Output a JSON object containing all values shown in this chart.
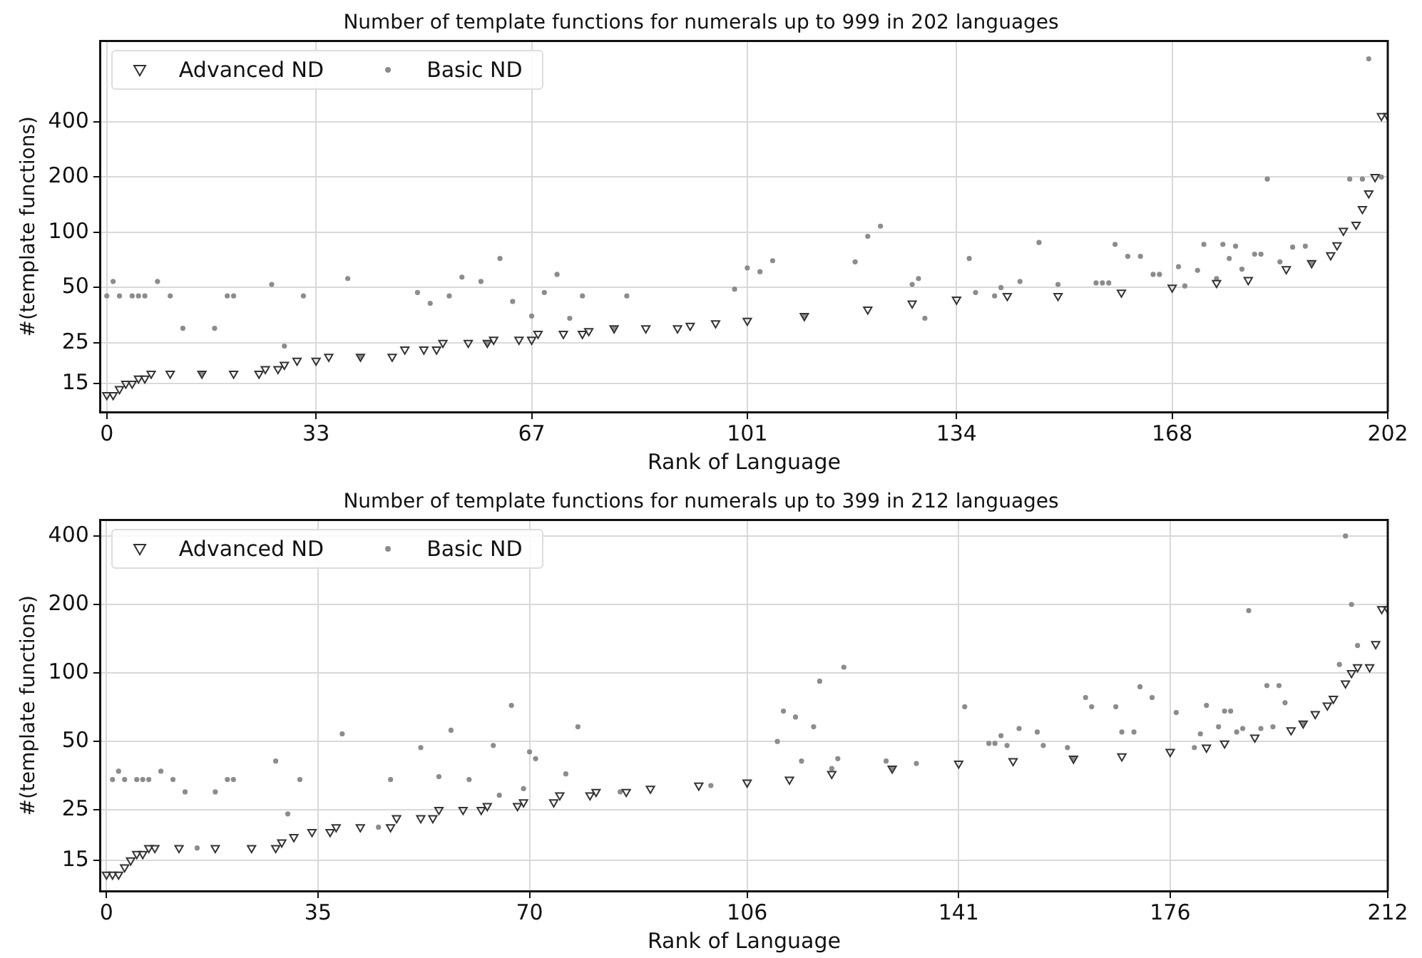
{
  "chart_data": [
    {
      "type": "scatter",
      "title": "Number of template functions for numerals up to 999 in 202 languages",
      "xlabel": "Rank of Language",
      "ylabel": "#(template functions)",
      "xlim": [
        -1,
        202
      ],
      "xticks": [
        0,
        33,
        67,
        101,
        134,
        168,
        202
      ],
      "ylim": [
        10.5,
        1100
      ],
      "yticks": [
        15,
        25,
        50,
        100,
        200,
        400
      ],
      "log": "y",
      "grid": true,
      "legend": "top left",
      "series": [
        {
          "name": "Advanced ND",
          "color": "#333333",
          "marker": "triangle",
          "x": [
            0,
            1,
            2,
            3,
            4,
            5,
            6,
            7,
            10,
            15,
            20,
            24,
            25,
            27,
            28,
            30,
            33,
            35,
            40,
            45,
            47,
            50,
            52,
            53,
            57,
            60,
            61,
            65,
            67,
            68,
            72,
            75,
            76,
            80,
            85,
            90,
            92,
            96,
            101,
            110,
            120,
            127,
            134,
            142,
            150,
            160,
            168,
            175,
            180,
            186,
            190,
            193,
            194,
            195,
            197,
            198,
            199,
            200,
            201,
            202
          ],
          "values": [
            13,
            13,
            14,
            15,
            15,
            16,
            16,
            17,
            17,
            17,
            17,
            17,
            18,
            18,
            19,
            20,
            20,
            21,
            21,
            21,
            23,
            23,
            23,
            25,
            25,
            25,
            26,
            26,
            26,
            28,
            28,
            28,
            29,
            30,
            30,
            30,
            31,
            32,
            33,
            35,
            38,
            41,
            43,
            45,
            45,
            47,
            50,
            53,
            55,
            63,
            68,
            75,
            85,
            102,
            110,
            134,
            163,
            200,
            430,
            430
          ]
        },
        {
          "name": "Basic ND",
          "color": "#8c8c8c",
          "marker": "circle",
          "x": [
            0,
            1,
            2,
            4,
            5,
            6,
            8,
            10,
            12,
            15,
            17,
            19,
            20,
            26,
            28,
            31,
            38,
            40,
            49,
            51,
            54,
            56,
            59,
            60,
            62,
            64,
            67,
            69,
            71,
            73,
            75,
            80,
            82,
            99,
            101,
            103,
            105,
            110,
            118,
            120,
            122,
            127,
            128,
            129,
            136,
            137,
            140,
            141,
            144,
            147,
            150,
            156,
            157,
            158,
            159,
            161,
            163,
            165,
            166,
            169,
            170,
            172,
            173,
            175,
            176,
            177,
            178,
            179,
            181,
            182,
            183,
            185,
            187,
            189,
            190,
            196,
            198,
            199,
            201
          ],
          "values": [
            45,
            54,
            45,
            45,
            45,
            45,
            54,
            45,
            30,
            17,
            30,
            45,
            45,
            52,
            24,
            45,
            56,
            21,
            47,
            41,
            45,
            57,
            54,
            25,
            72,
            42,
            35,
            47,
            59,
            34,
            45,
            30,
            45,
            49,
            64,
            61,
            70,
            35,
            69,
            95,
            108,
            52,
            56,
            34,
            72,
            47,
            45,
            50,
            54,
            88,
            52,
            53,
            53,
            53,
            86,
            74,
            74,
            59,
            59,
            65,
            51,
            62,
            86,
            56,
            86,
            72,
            84,
            63,
            76,
            76,
            195,
            69,
            83,
            84,
            68,
            195,
            195,
            880,
            200
          ]
        }
      ]
    },
    {
      "type": "scatter",
      "title": "Number of template functions for numerals up to 399 in 212 languages",
      "xlabel": "Rank of Language",
      "ylabel": "#(template functions)",
      "xlim": [
        -1,
        212
      ],
      "xticks": [
        0,
        35,
        70,
        106,
        141,
        176,
        212
      ],
      "ylim": [
        11,
        470
      ],
      "yticks": [
        15,
        25,
        50,
        100,
        200,
        400
      ],
      "log": "y",
      "grid": true,
      "legend": "top left",
      "series": [
        {
          "name": "Advanced ND",
          "color": "#333333",
          "marker": "triangle",
          "x": [
            0,
            1,
            2,
            3,
            4,
            5,
            6,
            7,
            8,
            12,
            18,
            24,
            28,
            29,
            31,
            34,
            37,
            38,
            42,
            47,
            48,
            52,
            54,
            55,
            59,
            62,
            63,
            68,
            69,
            74,
            75,
            80,
            81,
            86,
            90,
            98,
            106,
            113,
            120,
            130,
            141,
            150,
            160,
            168,
            176,
            182,
            185,
            190,
            196,
            198,
            200,
            202,
            203,
            205,
            206,
            207,
            209,
            210,
            211,
            212
          ],
          "values": [
            13,
            13,
            13,
            14,
            15,
            16,
            16,
            17,
            17,
            17,
            17,
            17,
            17,
            18,
            19,
            20,
            20,
            21,
            21,
            21,
            23,
            23,
            23,
            25,
            25,
            25,
            26,
            26,
            27,
            27,
            29,
            29,
            30,
            30,
            31,
            32,
            33,
            34,
            36,
            38,
            40,
            41,
            42,
            43,
            45,
            47,
            49,
            52,
            56,
            60,
            66,
            72,
            77,
            90,
            100,
            106,
            106,
            134,
            191,
            191
          ]
        },
        {
          "name": "Basic ND",
          "color": "#8c8c8c",
          "marker": "circle",
          "x": [
            1,
            2,
            3,
            5,
            6,
            7,
            9,
            11,
            13,
            15,
            18,
            20,
            21,
            28,
            30,
            32,
            39,
            45,
            47,
            52,
            55,
            57,
            60,
            64,
            65,
            67,
            69,
            70,
            71,
            76,
            78,
            85,
            100,
            111,
            112,
            114,
            115,
            117,
            118,
            120,
            121,
            122,
            129,
            130,
            134,
            142,
            146,
            147,
            148,
            149,
            151,
            154,
            155,
            159,
            160,
            162,
            163,
            167,
            168,
            170,
            171,
            173,
            177,
            180,
            181,
            182,
            184,
            185,
            186,
            187,
            188,
            189,
            191,
            192,
            193,
            194,
            195,
            198,
            204,
            205,
            206,
            207
          ],
          "values": [
            34,
            37,
            34,
            34,
            34,
            34,
            37,
            34,
            30,
            17,
            30,
            34,
            34,
            41,
            24,
            34,
            54,
            21,
            34,
            47,
            35,
            56,
            34,
            48,
            29,
            72,
            31,
            45,
            42,
            36,
            58,
            30,
            32,
            50,
            68,
            64,
            41,
            58,
            92,
            38,
            42,
            106,
            41,
            38,
            40,
            71,
            49,
            49,
            53,
            48,
            57,
            55,
            48,
            47,
            42,
            78,
            71,
            71,
            55,
            55,
            87,
            78,
            67,
            47,
            54,
            72,
            58,
            68,
            68,
            55,
            57,
            188,
            57,
            88,
            58,
            88,
            74,
            60,
            109,
            400,
            200,
            132
          ]
        }
      ]
    }
  ]
}
